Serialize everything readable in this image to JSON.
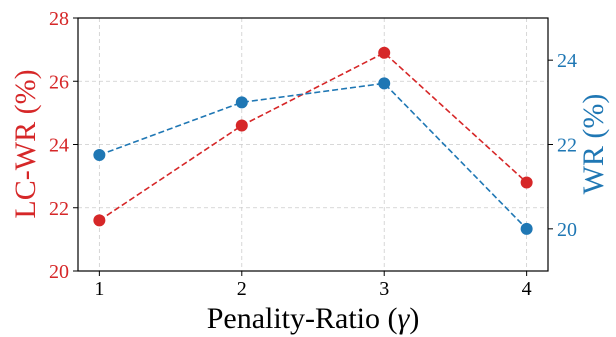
{
  "chart_data": {
    "type": "line",
    "title": "",
    "xlabel": "Penality-Ratio (",
    "xlabel_symbol": "γ",
    "xlabel_suffix": ")",
    "ylabel_left": "LC-WR (%)",
    "ylabel_right": "WR (%)",
    "categories": [
      "1",
      "2",
      "3",
      "4"
    ],
    "x": [
      1,
      2,
      3,
      4
    ],
    "xlim": [
      0.85,
      4.15
    ],
    "ylim_left": [
      20,
      28
    ],
    "ylim_right": [
      19,
      25
    ],
    "yticks_left": [
      "20",
      "22",
      "24",
      "26",
      "28"
    ],
    "yticks_right": [
      "20",
      "22",
      "24"
    ],
    "grid": true,
    "series": [
      {
        "axis": "left",
        "color": "#d62728",
        "values": [
          21.6,
          24.6,
          26.9,
          22.8
        ]
      },
      {
        "axis": "right",
        "color": "#1f77b4",
        "values": [
          21.75,
          23.0,
          23.45,
          20.0
        ]
      }
    ]
  }
}
